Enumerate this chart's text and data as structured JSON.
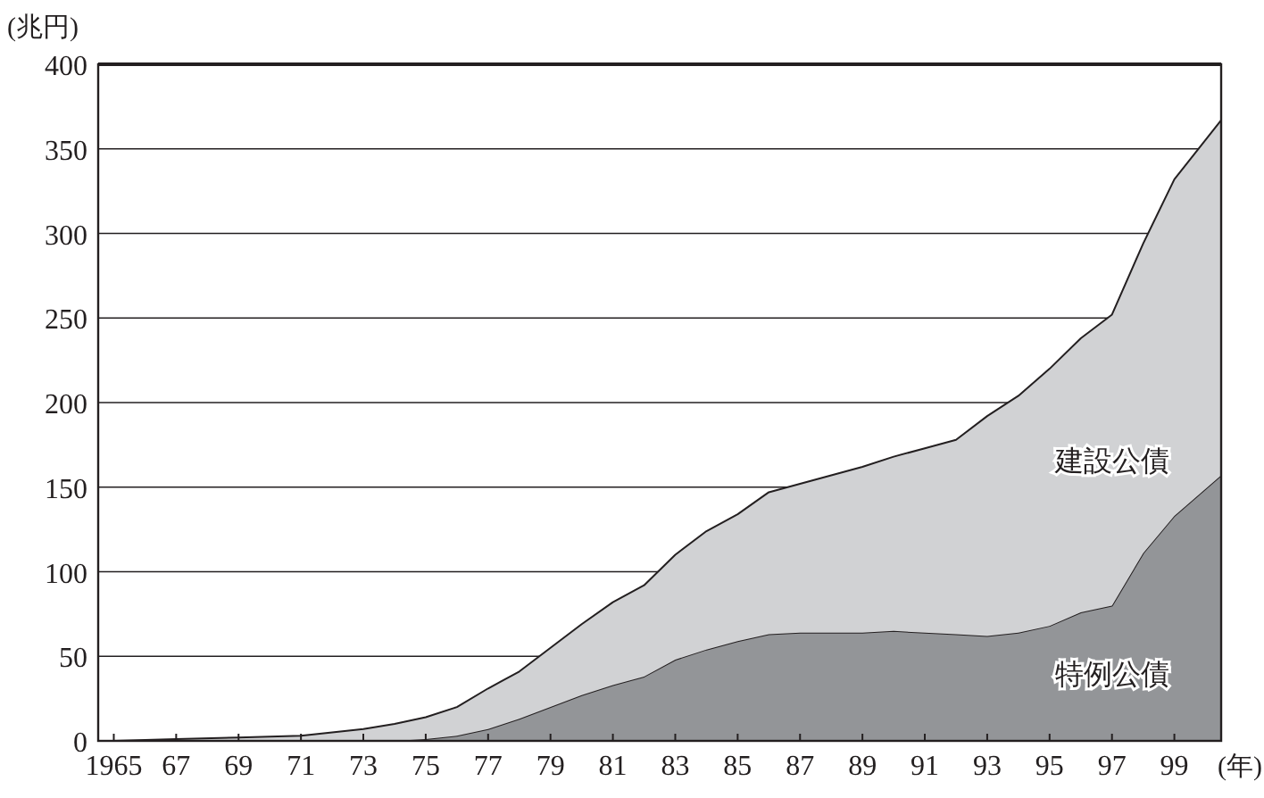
{
  "chart_data": {
    "type": "area",
    "stacked": true,
    "xlabel": "(年)",
    "ylabel": "(兆円)",
    "x": [
      1965,
      1967,
      1969,
      1971,
      1973,
      1974,
      1975,
      1976,
      1977,
      1978,
      1979,
      1980,
      1981,
      1982,
      1983,
      1984,
      1985,
      1986,
      1987,
      1988,
      1989,
      1990,
      1991,
      1992,
      1993,
      1994,
      1995,
      1996,
      1997,
      1998,
      1999,
      2000.5
    ],
    "series": [
      {
        "name": "特例公債",
        "color": "#939598",
        "values": [
          0,
          0,
          0,
          0,
          0,
          0,
          1,
          3,
          7,
          13,
          20,
          27,
          33,
          38,
          48,
          54,
          59,
          63,
          64,
          64,
          64,
          65,
          64,
          63,
          62,
          64,
          68,
          76,
          80,
          111,
          133,
          157
        ]
      },
      {
        "name": "建設公債",
        "color": "#d1d2d4",
        "values": [
          0,
          1,
          2,
          3,
          7,
          10,
          13,
          17,
          24,
          28,
          35,
          42,
          49,
          54,
          62,
          70,
          75,
          84,
          88,
          93,
          98,
          103,
          109,
          115,
          130,
          140,
          152,
          162,
          172,
          183,
          199,
          210
        ]
      }
    ],
    "xlim": [
      1964.5,
      2000.5
    ],
    "xticks": [
      {
        "value": 1965,
        "label": "1965"
      },
      {
        "value": 1967,
        "label": "67"
      },
      {
        "value": 1969,
        "label": "69"
      },
      {
        "value": 1971,
        "label": "71"
      },
      {
        "value": 1973,
        "label": "73"
      },
      {
        "value": 1975,
        "label": "75"
      },
      {
        "value": 1977,
        "label": "77"
      },
      {
        "value": 1979,
        "label": "79"
      },
      {
        "value": 1981,
        "label": "81"
      },
      {
        "value": 1983,
        "label": "83"
      },
      {
        "value": 1985,
        "label": "85"
      },
      {
        "value": 1987,
        "label": "87"
      },
      {
        "value": 1989,
        "label": "89"
      },
      {
        "value": 1991,
        "label": "91"
      },
      {
        "value": 1993,
        "label": "93"
      },
      {
        "value": 1995,
        "label": "95"
      },
      {
        "value": 1997,
        "label": "97"
      },
      {
        "value": 1999,
        "label": "99"
      }
    ],
    "ylim": [
      0,
      400
    ],
    "yticks": [
      0,
      50,
      100,
      150,
      200,
      250,
      300,
      350,
      400
    ],
    "grid": "y"
  }
}
